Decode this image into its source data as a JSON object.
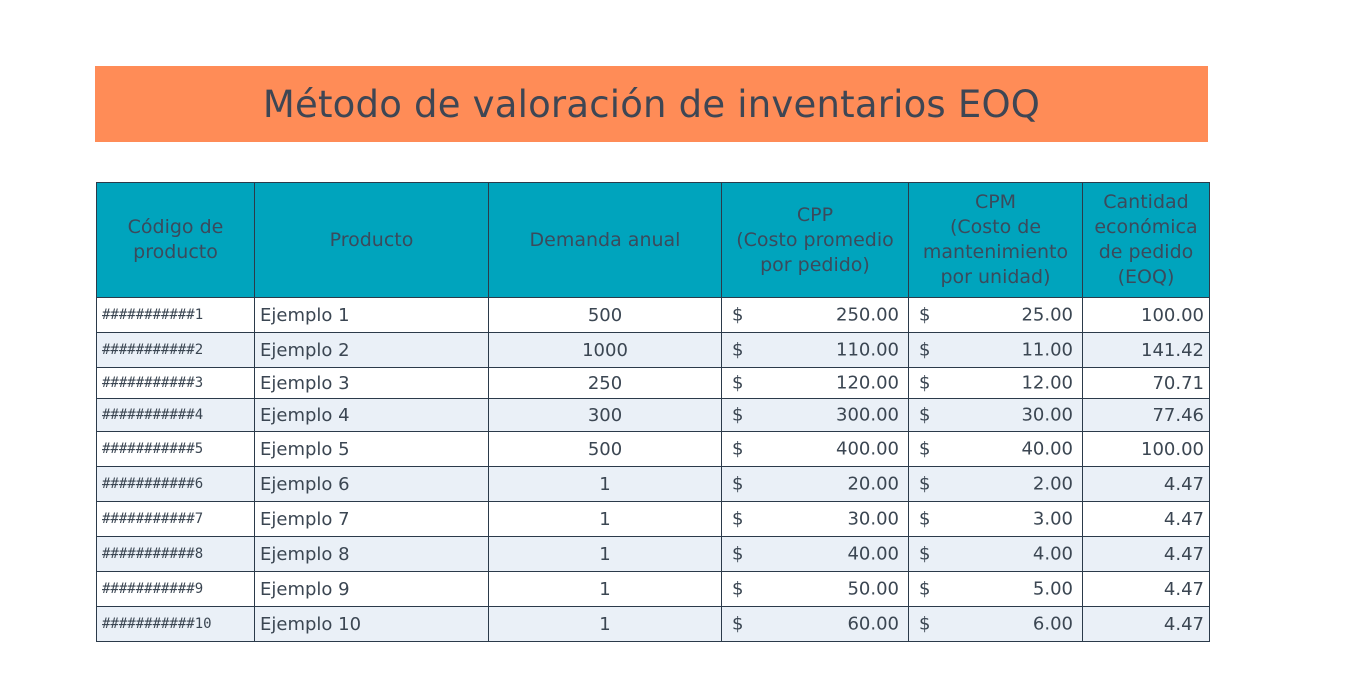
{
  "title": "Método de valoración de inventarios EOQ",
  "table": {
    "headers": [
      [
        "Código de",
        "producto"
      ],
      [
        "Producto"
      ],
      [
        "Demanda anual"
      ],
      [
        "CPP",
        "(Costo promedio",
        "por pedido)"
      ],
      [
        "CPM",
        "(Costo de",
        "mantenimiento",
        "por unidad)"
      ],
      [
        "Cantidad",
        "económica",
        "de pedido",
        "(EOQ)"
      ]
    ],
    "currency_symbol": "$",
    "rows": [
      {
        "code": "###########1",
        "product": "Ejemplo 1",
        "demand": "500",
        "cpp": "250.00",
        "cpm": "25.00",
        "eoq": "100.00"
      },
      {
        "code": "###########2",
        "product": "Ejemplo 2",
        "demand": "1000",
        "cpp": "110.00",
        "cpm": "11.00",
        "eoq": "141.42"
      },
      {
        "code": "###########3",
        "product": "Ejemplo 3",
        "demand": "250",
        "cpp": "120.00",
        "cpm": "12.00",
        "eoq": "70.71"
      },
      {
        "code": "###########4",
        "product": "Ejemplo 4",
        "demand": "300",
        "cpp": "300.00",
        "cpm": "30.00",
        "eoq": "77.46"
      },
      {
        "code": "###########5",
        "product": "Ejemplo 5",
        "demand": "500",
        "cpp": "400.00",
        "cpm": "40.00",
        "eoq": "100.00"
      },
      {
        "code": "###########6",
        "product": "Ejemplo 6",
        "demand": "1",
        "cpp": "20.00",
        "cpm": "2.00",
        "eoq": "4.47"
      },
      {
        "code": "###########7",
        "product": "Ejemplo 7",
        "demand": "1",
        "cpp": "30.00",
        "cpm": "3.00",
        "eoq": "4.47"
      },
      {
        "code": "###########8",
        "product": "Ejemplo 8",
        "demand": "1",
        "cpp": "40.00",
        "cpm": "4.00",
        "eoq": "4.47"
      },
      {
        "code": "###########9",
        "product": "Ejemplo 9",
        "demand": "1",
        "cpp": "50.00",
        "cpm": "5.00",
        "eoq": "4.47"
      },
      {
        "code": "###########10",
        "product": "Ejemplo 10",
        "demand": "1",
        "cpp": "60.00",
        "cpm": "6.00",
        "eoq": "4.47"
      }
    ]
  },
  "colors": {
    "banner": "#FF8C57",
    "header": "#00A4BD",
    "row_alt": "#EAF0F7",
    "text": "#3B4652"
  }
}
